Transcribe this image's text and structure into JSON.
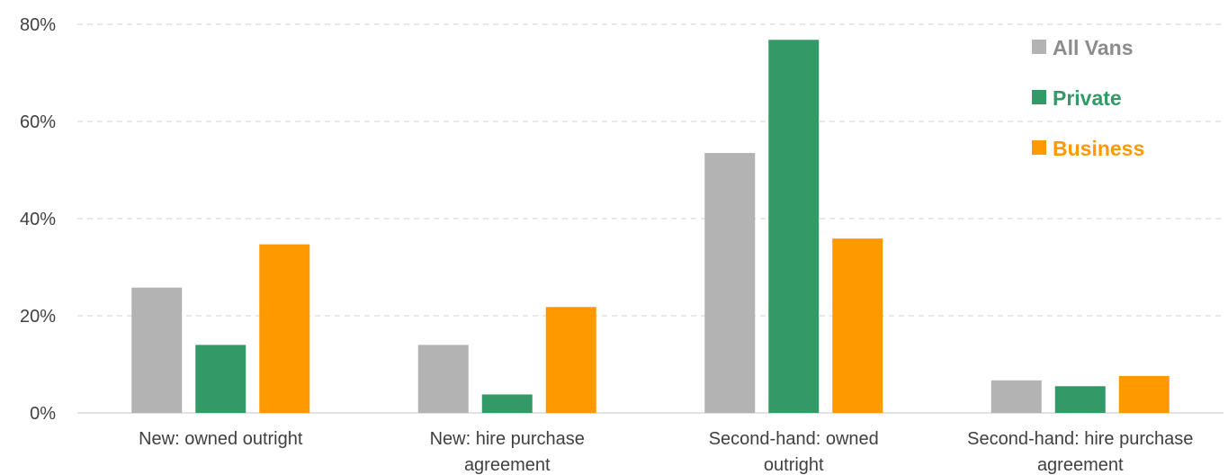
{
  "chart_data": {
    "type": "bar",
    "categories": [
      [
        "New: owned outright"
      ],
      [
        "New: hire purchase",
        "agreement"
      ],
      [
        "Second-hand: owned",
        "outright"
      ],
      [
        "Second-hand: hire purchase",
        "agreement"
      ]
    ],
    "series": [
      {
        "name": "All Vans",
        "color": "#b3b3b3",
        "values": [
          25.8,
          14.0,
          53.5,
          6.7
        ]
      },
      {
        "name": "Private",
        "color": "#339966",
        "values": [
          14.0,
          3.8,
          76.8,
          5.5
        ]
      },
      {
        "name": "Business",
        "color": "#ff9900",
        "values": [
          34.7,
          21.8,
          35.9,
          7.6
        ]
      }
    ],
    "y_ticks": [
      "0%",
      "20%",
      "40%",
      "60%",
      "80%"
    ],
    "y_tick_values": [
      0,
      20,
      40,
      60,
      80
    ],
    "ylim": [
      0,
      80
    ],
    "grid": true,
    "legend_position": "top-right",
    "title": "",
    "xlabel": "",
    "ylabel": ""
  }
}
